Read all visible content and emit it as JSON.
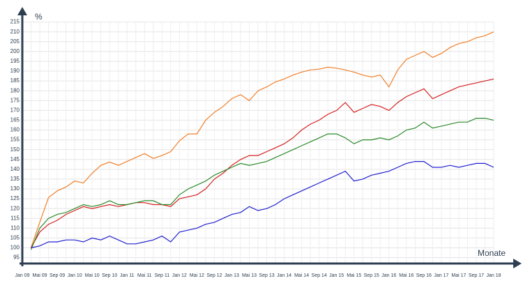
{
  "chart_data": {
    "type": "line",
    "y_label": "%",
    "x_label": "Monate",
    "grid": true,
    "categories": [
      "Jan 09",
      null,
      "Mai 09",
      null,
      "Sep 09",
      null,
      "Jan 10",
      null,
      "Mai 10",
      null,
      "Sep 10",
      null,
      "Jan 11",
      null,
      "Mai 11",
      null,
      "Sep 11",
      null,
      "Jan 12",
      null,
      "Mai 12",
      null,
      "Sep 12",
      null,
      "Jan 13",
      null,
      "Mai 13",
      null,
      "Sep 13",
      null,
      "Jan 14",
      null,
      "Mai 14",
      null,
      "Sep 14",
      null,
      "Jan 15",
      null,
      "Mai 15",
      null,
      "Sep 15",
      null,
      "Jan 16",
      null,
      "Mai 16",
      null,
      "Sep 16",
      null,
      "Jan 17",
      null,
      "Mai 17",
      null,
      "Sep 17",
      null,
      "Jan 18"
    ],
    "ylim": [
      92,
      217
    ],
    "yticks": [
      95,
      100,
      105,
      110,
      115,
      120,
      125,
      130,
      135,
      140,
      145,
      150,
      155,
      160,
      165,
      170,
      175,
      180,
      185,
      190,
      195,
      200,
      205,
      210,
      215
    ],
    "series": [
      {
        "color": "#f07f2a",
        "values": [
          null,
          100,
          113,
          125.6,
          129,
          131,
          134,
          133,
          138,
          142,
          143.7,
          142,
          144,
          146,
          148,
          145.5,
          147,
          149,
          154.5,
          158,
          158,
          165,
          169,
          172,
          176,
          178,
          175,
          180,
          182,
          184.5,
          186,
          188,
          189.5,
          190.6,
          191,
          192,
          191.5,
          190.6,
          189.5,
          188,
          187,
          188,
          182,
          190.6,
          196,
          198,
          200,
          197,
          199,
          202,
          204,
          205,
          207,
          208,
          210
        ]
      },
      {
        "color": "#d42020",
        "values": [
          null,
          100,
          108,
          112,
          114,
          117,
          119,
          121,
          120,
          121,
          122,
          121,
          122,
          123,
          123,
          122,
          122,
          121,
          125,
          126,
          127,
          130,
          135,
          138,
          142,
          145,
          147,
          147,
          149,
          151,
          153,
          156,
          160,
          163,
          165,
          168,
          170,
          174,
          169,
          171,
          173,
          172,
          170,
          174,
          177,
          179,
          181,
          176,
          178,
          180,
          182,
          183,
          184,
          185,
          186
        ]
      },
      {
        "color": "#2a8a2a",
        "values": [
          null,
          99,
          110,
          115,
          117,
          118,
          120,
          122,
          121,
          122,
          124,
          122,
          122,
          123,
          124,
          124,
          122,
          122,
          127,
          130,
          132,
          134,
          137,
          139,
          141,
          143,
          142,
          143,
          144,
          146,
          148,
          150,
          152,
          154,
          156,
          158,
          158,
          156,
          153,
          155,
          155,
          156,
          155,
          157,
          160,
          161,
          164,
          161,
          162,
          163,
          164,
          164,
          166,
          166,
          165
        ]
      },
      {
        "color": "#2020d0",
        "values": [
          null,
          100,
          101,
          103,
          103,
          104,
          104,
          103,
          105,
          104,
          106,
          104,
          102,
          102,
          103,
          104,
          106,
          103,
          108,
          109,
          110,
          112,
          113,
          115,
          117,
          118,
          121,
          119,
          120,
          122,
          125,
          127,
          129,
          131,
          133,
          135,
          137,
          139,
          134,
          135,
          137,
          138,
          139,
          141,
          143,
          144,
          144,
          141,
          141,
          142,
          141,
          142,
          143,
          143,
          141
        ]
      }
    ]
  }
}
